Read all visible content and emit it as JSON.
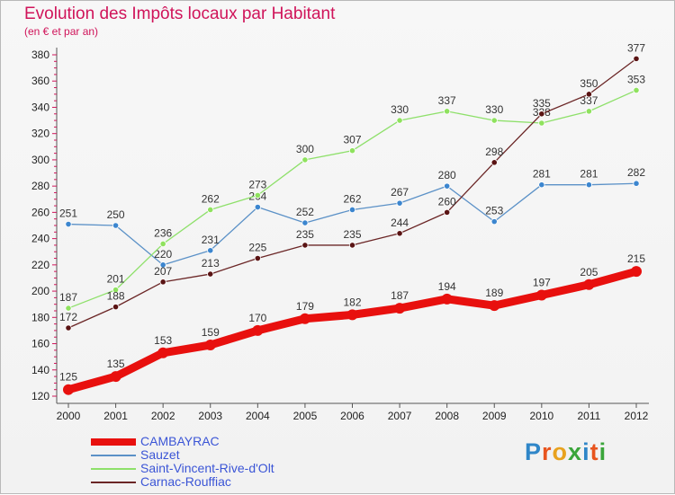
{
  "title": "Evolution des Impôts locaux par Habitant",
  "subtitle": "(en € et par an)",
  "logo_text": "Proxiti",
  "chart_data": {
    "type": "line",
    "title": "Evolution des Impôts locaux par Habitant",
    "subtitle": "(en € et par an)",
    "xlabel": "",
    "ylabel": "",
    "x": [
      "2000",
      "2001",
      "2002",
      "2003",
      "2004",
      "2005",
      "2006",
      "2007",
      "2008",
      "2009",
      "2010",
      "2011",
      "2012"
    ],
    "yticks": [
      120,
      140,
      160,
      180,
      200,
      220,
      240,
      260,
      280,
      300,
      320,
      340,
      360,
      380
    ],
    "ylim": [
      120,
      380
    ],
    "grid": false,
    "legend_position": "bottom-left",
    "series": [
      {
        "name": "CAMBAYRAC",
        "color": "#e8100e",
        "values": [
          125,
          135,
          153,
          159,
          170,
          179,
          182,
          187,
          194,
          189,
          197,
          205,
          215
        ]
      },
      {
        "name": "Sauzet",
        "color": "#5b91c7",
        "values": [
          251,
          250,
          220,
          231,
          264,
          252,
          262,
          267,
          280,
          253,
          281,
          281,
          282
        ]
      },
      {
        "name": "Saint-Vincent-Rive-d'Olt",
        "color": "#8ee06a",
        "values": [
          187,
          201,
          236,
          262,
          273,
          300,
          307,
          330,
          337,
          330,
          328,
          337,
          353
        ]
      },
      {
        "name": "Carnac-Rouffiac",
        "color": "#6b2626",
        "values": [
          172,
          188,
          207,
          213,
          225,
          235,
          235,
          244,
          260,
          298,
          335,
          350,
          377
        ]
      }
    ]
  },
  "legend_colors": {
    "CAMBAYRAC": "#e8100e",
    "Sauzet": "#3b55d6",
    "Saint-Vincent-Rive-d'Olt": "#3b55d6",
    "Carnac-Rouffiac": "#3b55d6"
  },
  "logo_colors": [
    "#2f86c8",
    "#e8541e",
    "#e8a21e",
    "#3aa53a",
    "#2f86c8",
    "#e8541e",
    "#3aa53a"
  ]
}
